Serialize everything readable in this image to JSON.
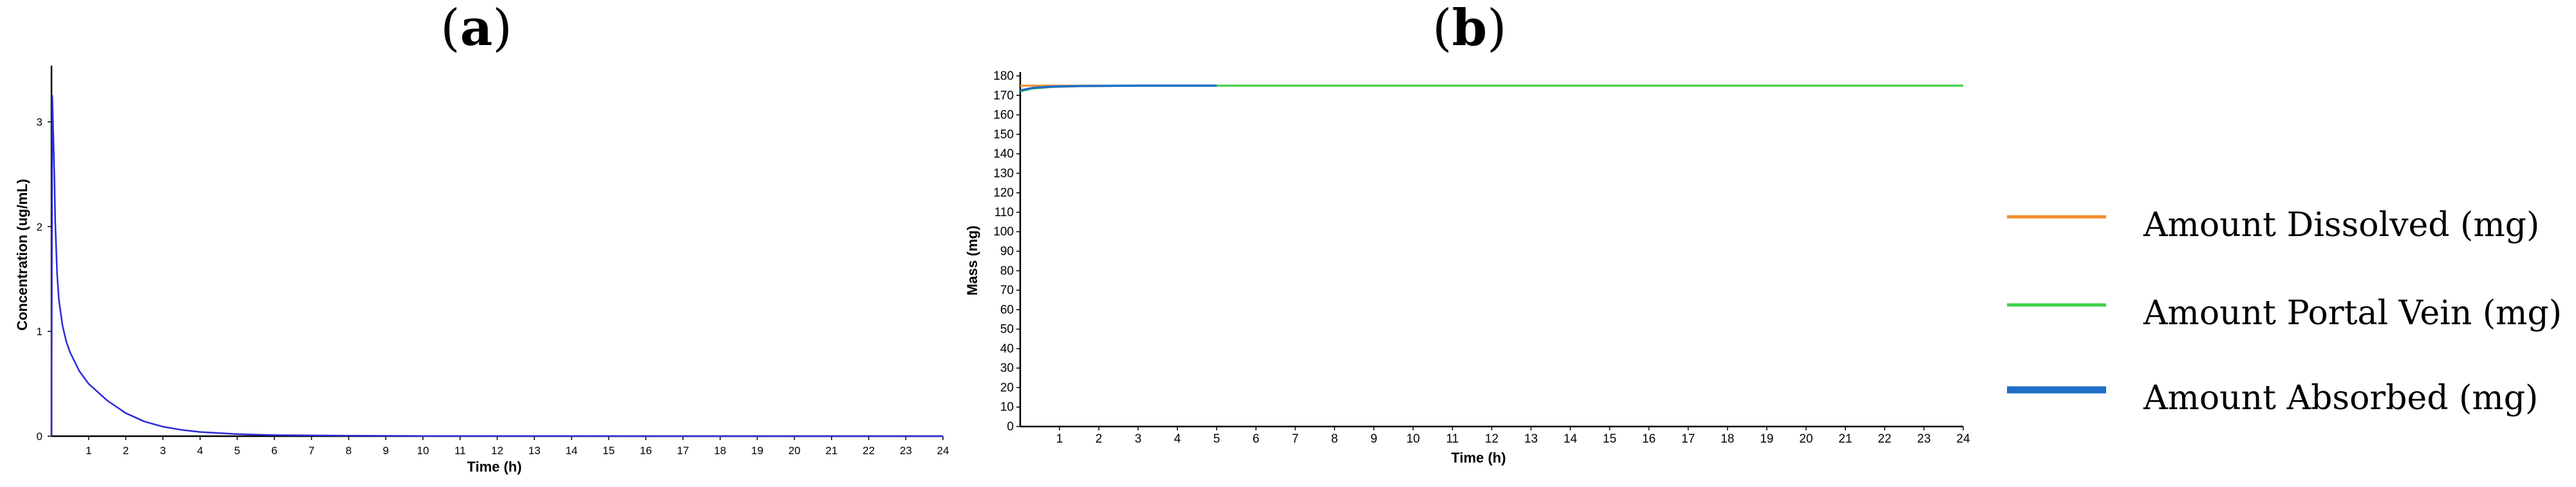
{
  "panels": {
    "a": {
      "label": "a"
    },
    "b": {
      "label": "b"
    }
  },
  "chart_data": [
    {
      "type": "line",
      "panel": "a",
      "title": "",
      "xlabel": "Time (h)",
      "ylabel": "Concentration (ug/mL)",
      "xlim": [
        0,
        24
      ],
      "ylim": [
        0,
        3.5
      ],
      "x_ticks": [
        1,
        2,
        3,
        4,
        5,
        6,
        7,
        8,
        9,
        10,
        11,
        12,
        13,
        14,
        15,
        16,
        17,
        18,
        19,
        20,
        21,
        22,
        23,
        24
      ],
      "y_ticks": [
        0,
        1,
        2,
        3
      ],
      "grid": false,
      "series": [
        {
          "color": "#2b2bd6",
          "x": [
            0,
            0.02,
            0.05,
            0.08,
            0.1,
            0.15,
            0.2,
            0.3,
            0.4,
            0.5,
            0.75,
            1,
            1.5,
            2,
            2.5,
            3,
            3.5,
            4,
            5,
            6,
            8,
            10,
            12,
            16,
            20,
            24
          ],
          "y": [
            0,
            3.25,
            2.85,
            2.45,
            2.05,
            1.55,
            1.3,
            1.05,
            0.9,
            0.8,
            0.62,
            0.5,
            0.34,
            0.22,
            0.14,
            0.09,
            0.06,
            0.04,
            0.02,
            0.01,
            0.004,
            0.002,
            0.001,
            0,
            0,
            0
          ]
        }
      ]
    },
    {
      "type": "line",
      "panel": "b",
      "title": "",
      "xlabel": "Time (h)",
      "ylabel": "Mass (mg)",
      "xlim": [
        0,
        24
      ],
      "ylim": [
        0,
        180
      ],
      "x_ticks": [
        1,
        2,
        3,
        4,
        5,
        6,
        7,
        8,
        9,
        10,
        11,
        12,
        13,
        14,
        15,
        16,
        17,
        18,
        19,
        20,
        21,
        22,
        23,
        24
      ],
      "y_ticks": [
        0,
        10,
        20,
        30,
        40,
        50,
        60,
        70,
        80,
        90,
        100,
        110,
        120,
        130,
        140,
        150,
        160,
        170,
        180
      ],
      "grid": false,
      "legend_position": "right",
      "series": [
        {
          "name": "Amount Dissolved (mg)",
          "color": "#f28e2b",
          "x": [
            0,
            0.1,
            0.5,
            1,
            2,
            5,
            24
          ],
          "y": [
            175,
            175,
            175,
            175,
            175,
            175,
            175
          ]
        },
        {
          "name": "Amount Portal Vein (mg)",
          "color": "#3cd24a",
          "x": [
            0,
            0.3,
            0.8,
            1.5,
            3,
            5,
            24
          ],
          "y": [
            172,
            173.5,
            174.3,
            174.7,
            175,
            175,
            175
          ]
        },
        {
          "name": "Amount Absorbed (mg)",
          "color": "#1f6fc8",
          "x": [
            0,
            0.3,
            0.8,
            1.5,
            3,
            5
          ],
          "y": [
            172.5,
            173.8,
            174.5,
            174.8,
            175,
            175
          ]
        }
      ]
    }
  ]
}
